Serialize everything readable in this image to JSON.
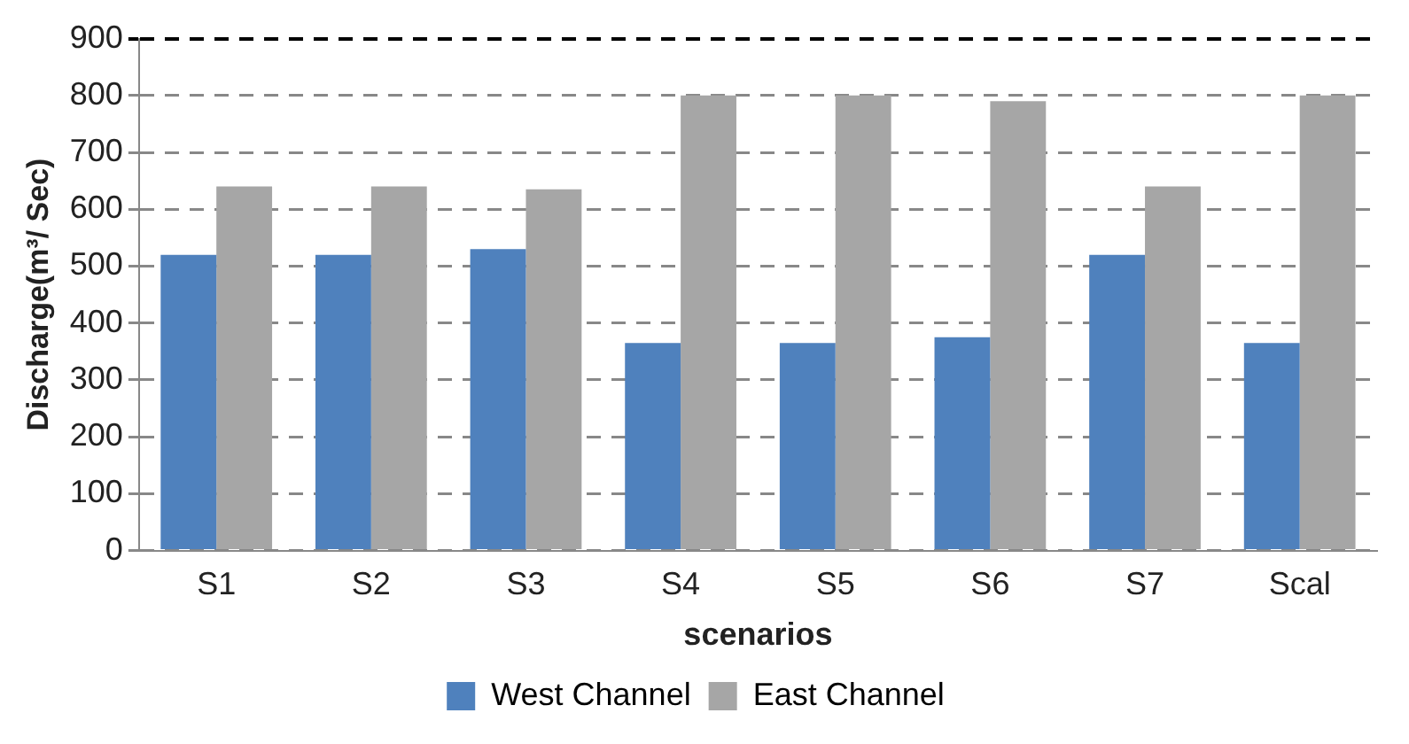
{
  "chart_data": {
    "type": "bar",
    "xlabel": "scenarios",
    "ylabel": "Discharge(m³/ Sec)",
    "categories": [
      "S1",
      "S2",
      "S3",
      "S4",
      "S5",
      "S6",
      "S7",
      "Scal"
    ],
    "series": [
      {
        "name": "West Channel",
        "color": "#4f81bd",
        "values": [
          520,
          520,
          530,
          365,
          365,
          375,
          520,
          365
        ]
      },
      {
        "name": "East Channel",
        "color": "#a6a6a6",
        "values": [
          640,
          640,
          635,
          800,
          800,
          790,
          640,
          800
        ]
      }
    ],
    "ylim": [
      0,
      900
    ],
    "yticks": [
      0,
      100,
      200,
      300,
      400,
      500,
      600,
      700,
      800,
      900
    ],
    "grid": "y",
    "legend": "bottom"
  }
}
